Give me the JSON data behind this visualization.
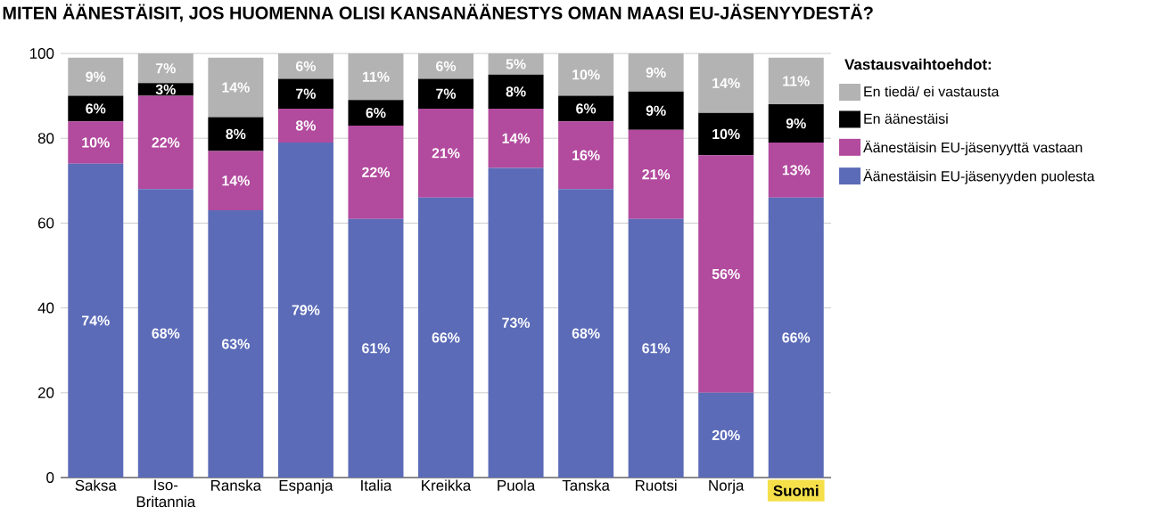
{
  "chart_data": {
    "type": "bar",
    "stacked": true,
    "title": "MITEN ÄÄNESTÄISIT, JOS HUOMENNA OLISI KANSANÄÄNESTYS OMAN MAASI EU-JÄSENYYDESTÄ?",
    "legend_title": "Vastausvaihtoehdot:",
    "legend": "right",
    "grid": "y",
    "ylim": [
      0,
      100
    ],
    "yticks": [
      0,
      20,
      40,
      60,
      80,
      100
    ],
    "categories": [
      "Saksa",
      "Iso-Britannia",
      "Ranska",
      "Espanja",
      "Italia",
      "Kreikka",
      "Puola",
      "Tanska",
      "Ruotsi",
      "Norja",
      "Suomi"
    ],
    "series": [
      {
        "name": "Äänestäisin EU-jäsenyyden puolesta",
        "color": "#5b6bb8",
        "values": [
          74,
          68,
          63,
          79,
          61,
          66,
          73,
          68,
          61,
          20,
          66
        ],
        "value_labels": [
          "74%",
          "68%",
          "63%",
          "79%",
          "61%",
          "66%",
          "73%",
          "68%",
          "61%",
          "20%",
          "66%"
        ]
      },
      {
        "name": "Äänestäisin EU-jäsenyyttä vastaan",
        "color": "#b24a9e",
        "values": [
          10,
          22,
          14,
          8,
          22,
          21,
          14,
          16,
          21,
          56,
          13
        ],
        "value_labels": [
          "10%",
          "22%",
          "14%",
          "8%",
          "22%",
          "21%",
          "14%",
          "16%",
          "21%",
          "56%",
          "13%"
        ]
      },
      {
        "name": "En äänestäisi",
        "color": "#000000",
        "values": [
          6,
          3,
          8,
          7,
          6,
          7,
          8,
          6,
          9,
          10,
          9
        ],
        "value_labels": [
          "6%",
          "3%",
          "8%",
          "7%",
          "6%",
          "7%",
          "8%",
          "6%",
          "9%",
          "10%",
          "9%"
        ]
      },
      {
        "name": "En tiedä/ ei vastausta",
        "color": "#b3b3b3",
        "values": [
          9,
          7,
          14,
          6,
          11,
          6,
          5,
          10,
          9,
          14,
          11
        ],
        "value_labels": [
          "9%",
          "7%",
          "14%",
          "6%",
          "11%",
          "6%",
          "5%",
          "10%",
          "9%",
          "14%",
          "11%"
        ]
      }
    ]
  }
}
